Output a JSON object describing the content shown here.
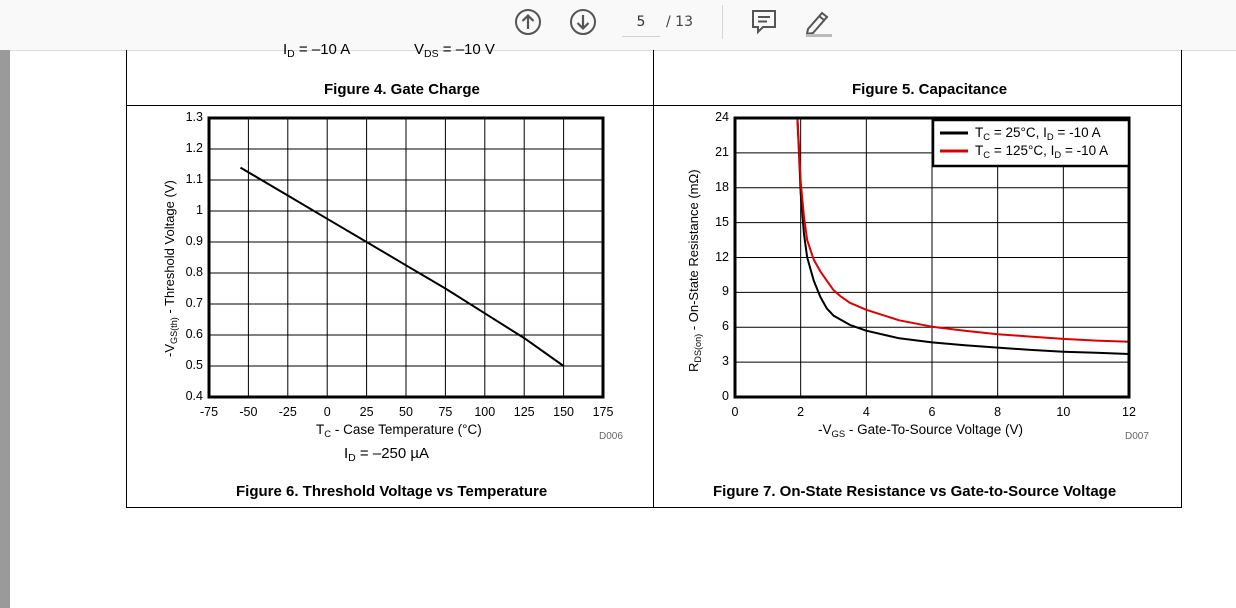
{
  "toolbar": {
    "prev_icon": "arrow-up-circle-icon",
    "next_icon": "arrow-down-circle-icon",
    "page_current": "5",
    "page_total": "/ 13",
    "comment_icon": "comment-icon",
    "draw_icon": "pen-icon"
  },
  "top_row": {
    "left_fragment_a": "I",
    "left_fragment_a_sub": "D",
    "left_fragment_a_rest": " = –10 A",
    "left_fragment_b": "V",
    "left_fragment_b_sub": "DS",
    "left_fragment_b_rest": " = –10 V",
    "fig4_caption": "Figure 4. Gate Charge",
    "fig5_caption": "Figure 5. Capacitance"
  },
  "fig6": {
    "caption": "Figure 6. Threshold Voltage vs Temperature",
    "code": "D006",
    "condition": "I",
    "condition_sub": "D",
    "condition_rest": " = –250 µA",
    "ylabel_pre": "-V",
    "ylabel_sub": "GS(th)",
    "ylabel_rest": " - Threshold Voltage (V)",
    "xlabel_pre": "T",
    "xlabel_sub": "C",
    "xlabel_rest": " - Case Temperature (°C)",
    "xticks": [
      "-75",
      "-50",
      "-25",
      "0",
      "25",
      "50",
      "75",
      "100",
      "125",
      "150",
      "175"
    ],
    "yticks": [
      "1.3",
      "1.2",
      "1.1",
      "1",
      "0.9",
      "0.8",
      "0.7",
      "0.6",
      "0.5",
      "0.4"
    ]
  },
  "fig7": {
    "caption": "Figure 7. On-State Resistance vs Gate-to-Source Voltage",
    "code": "D007",
    "ylabel_pre": "R",
    "ylabel_sub": "DS(on)",
    "ylabel_rest": " - On-State Resistance (mΩ)",
    "xlabel_pre": "-V",
    "xlabel_sub": "GS",
    "xlabel_rest": " - Gate-To-Source Voltage (V)",
    "xticks": [
      "0",
      "2",
      "4",
      "6",
      "8",
      "10",
      "12"
    ],
    "yticks": [
      "24",
      "21",
      "18",
      "15",
      "12",
      "9",
      "6",
      "3",
      "0"
    ],
    "legend": [
      {
        "pre": "T",
        "sub": "C",
        "mid": " = 25°C, I",
        "sub2": "D",
        "post": " = -10 A"
      },
      {
        "pre": "T",
        "sub": "C",
        "mid": " = 125°C, I",
        "sub2": "D",
        "post": " = -10 A"
      }
    ]
  },
  "chart_data": [
    {
      "type": "line",
      "title": "Figure 6. Threshold Voltage vs Temperature",
      "xlabel": "TC - Case Temperature (°C)",
      "ylabel": "-VGS(th) - Threshold Voltage (V)",
      "xlim": [
        -75,
        175
      ],
      "ylim": [
        0.4,
        1.3
      ],
      "grid": true,
      "series": [
        {
          "color": "#000000",
          "x": [
            -55,
            -25,
            0,
            25,
            50,
            75,
            100,
            125,
            150
          ],
          "y": [
            1.14,
            1.05,
            0.975,
            0.9,
            0.825,
            0.75,
            0.67,
            0.59,
            0.5
          ]
        }
      ]
    },
    {
      "type": "line",
      "title": "Figure 7. On-State Resistance vs Gate-to-Source Voltage",
      "xlabel": "-VGS - Gate-To-Source Voltage (V)",
      "ylabel": "RDS(on) - On-State Resistance (mΩ)",
      "xlim": [
        0,
        12
      ],
      "ylim": [
        0,
        24
      ],
      "grid": true,
      "legend_position": "top-right",
      "series": [
        {
          "name": "TC = 25°C, ID = -10 A",
          "color": "#000000",
          "x": [
            1.9,
            1.95,
            2.0,
            2.1,
            2.2,
            2.4,
            2.6,
            2.8,
            3.0,
            3.5,
            4,
            5,
            6,
            7,
            8,
            9,
            10,
            11,
            12
          ],
          "y": [
            24,
            21,
            17.5,
            14,
            12,
            10,
            8.6,
            7.6,
            7.0,
            6.2,
            5.7,
            5.05,
            4.7,
            4.45,
            4.25,
            4.05,
            3.9,
            3.8,
            3.7
          ]
        },
        {
          "name": "TC = 125°C, ID = -10 A",
          "color": "#dd0000",
          "x": [
            1.9,
            1.95,
            2.0,
            2.1,
            2.2,
            2.4,
            2.6,
            2.8,
            3.0,
            3.2,
            3.5,
            4,
            5,
            6,
            7,
            8,
            9,
            10,
            11,
            12
          ],
          "y": [
            24,
            21.5,
            18.5,
            15.5,
            13.5,
            11.8,
            10.8,
            10.0,
            9.2,
            8.7,
            8.1,
            7.5,
            6.6,
            6.05,
            5.7,
            5.4,
            5.2,
            5.0,
            4.85,
            4.75
          ]
        }
      ]
    }
  ]
}
